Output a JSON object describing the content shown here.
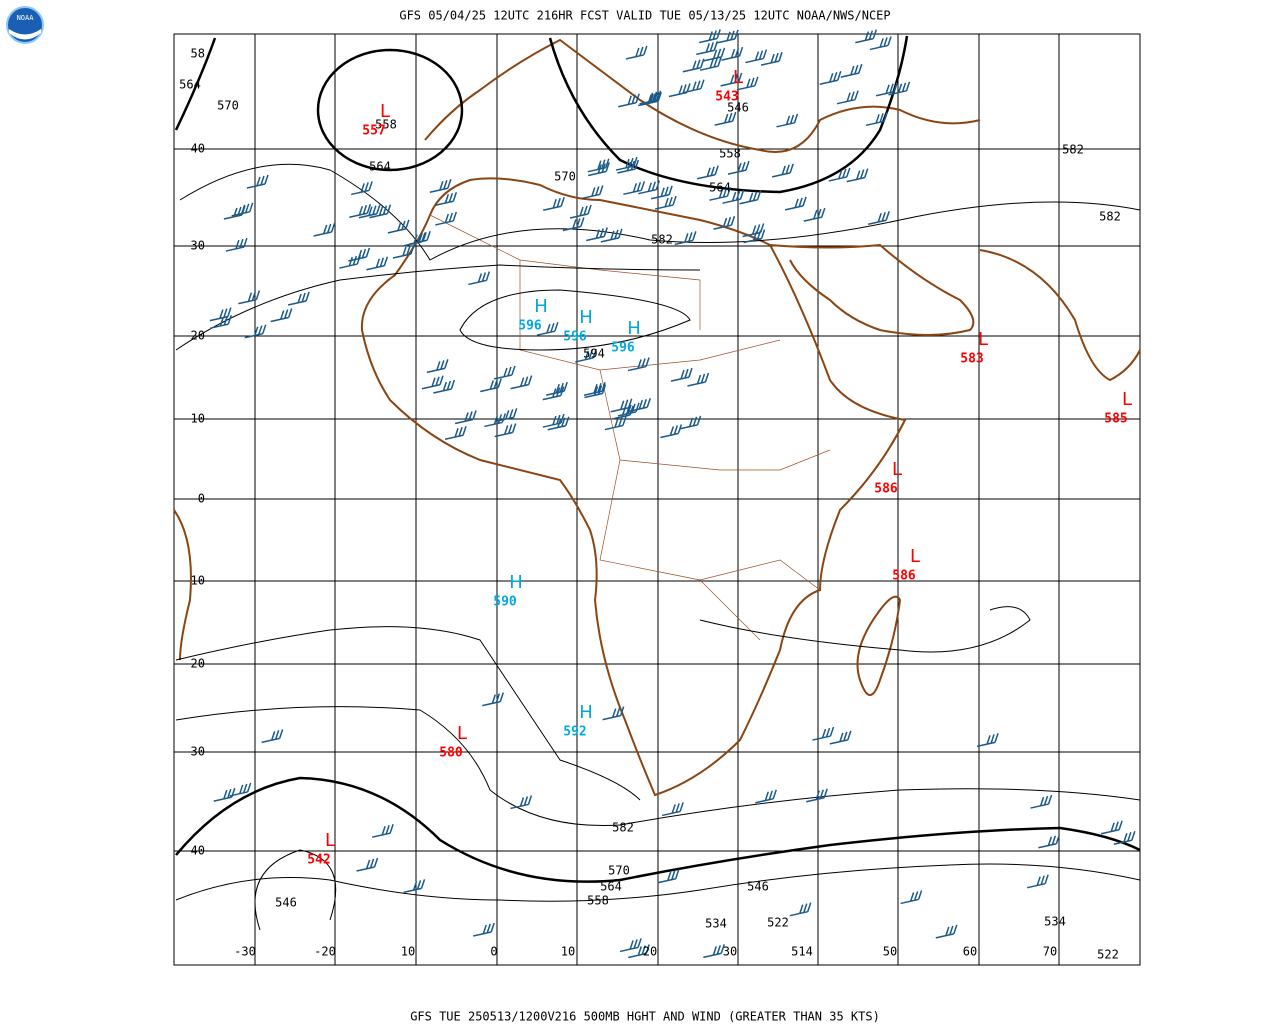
{
  "header": {
    "title": "GFS 05/04/25 12UTC 216HR FCST VALID TUE 05/13/25 12UTC NOAA/NWS/NCEP"
  },
  "logo": "NOAA",
  "lat_labels": [
    "58",
    "40",
    "30",
    "20",
    "10",
    "0",
    "-10",
    "-20",
    "-30",
    "-40"
  ],
  "lon_labels": [
    "-30",
    "-20",
    "10",
    "0",
    "10",
    "20",
    "30",
    "50",
    "60",
    "70"
  ],
  "contour_labels": [
    "564",
    "570",
    "558",
    "564",
    "570",
    "546",
    "558",
    "564",
    "582",
    "594",
    "582",
    "582",
    "582",
    "570",
    "564",
    "558",
    "546",
    "546",
    "534",
    "522",
    "514",
    "534",
    "522"
  ],
  "centers": [
    {
      "letter": "L",
      "value": "557",
      "color": "#ff0000"
    },
    {
      "letter": "L",
      "value": "543",
      "color": "#ff0000"
    },
    {
      "letter": "L",
      "value": "583",
      "color": "#ff0000"
    },
    {
      "letter": "L",
      "value": "585",
      "color": "#ff0000"
    },
    {
      "letter": "L",
      "value": "586",
      "color": "#ff0000"
    },
    {
      "letter": "L",
      "value": "586",
      "color": "#ff0000"
    },
    {
      "letter": "L",
      "value": "580",
      "color": "#ff0000"
    },
    {
      "letter": "L",
      "value": "542",
      "color": "#ff0000"
    },
    {
      "letter": "H",
      "value": "596",
      "color": "#00a8e0"
    },
    {
      "letter": "H",
      "value": "596",
      "color": "#00a8e0"
    },
    {
      "letter": "H",
      "value": "596",
      "color": "#00a8e0"
    },
    {
      "letter": "H",
      "value": "590",
      "color": "#00a8e0"
    },
    {
      "letter": "H",
      "value": "592",
      "color": "#00a8e0"
    }
  ],
  "footer": "GFS TUE 250513/1200V216 500MB HGHT AND WIND (GREATER THAN 35 KTS)"
}
